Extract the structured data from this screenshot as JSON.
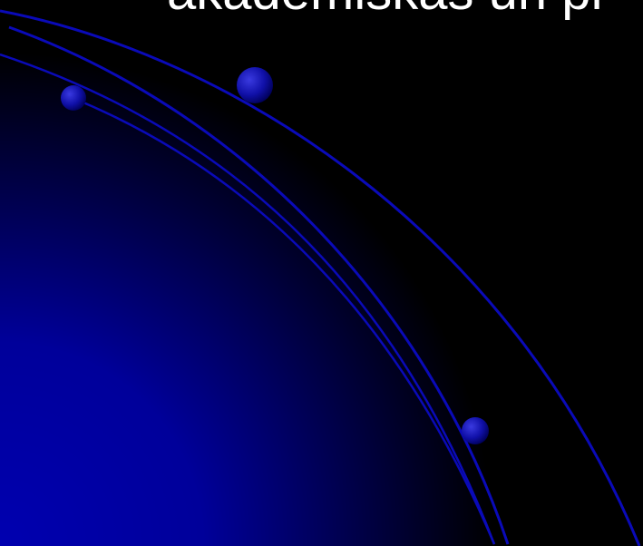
{
  "slide": {
    "title": "akademiskas un pr"
  }
}
